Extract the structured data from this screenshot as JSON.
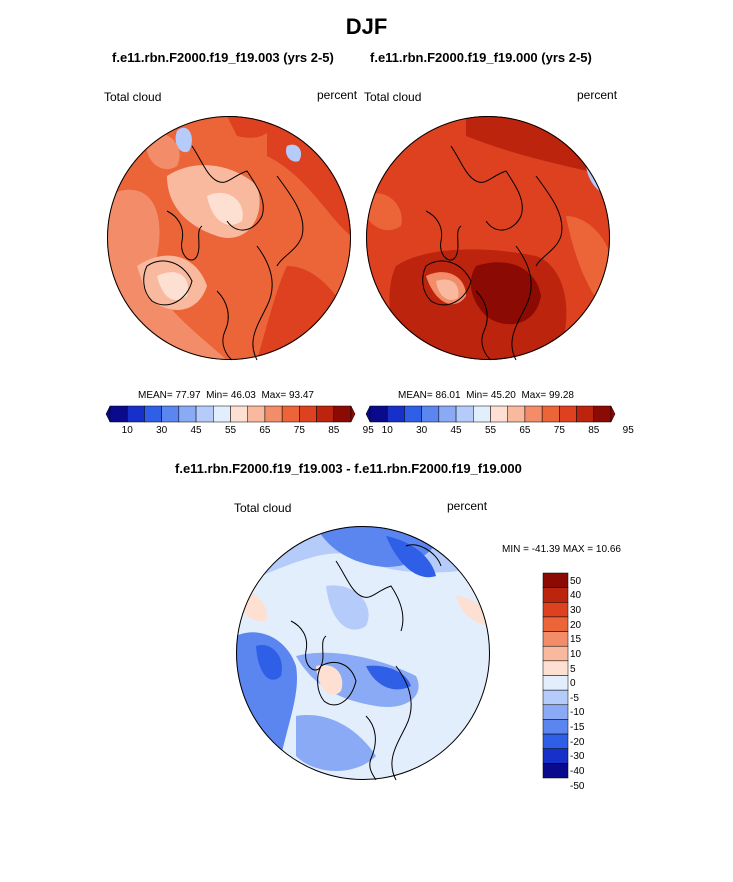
{
  "title": "DJF",
  "panels": [
    {
      "title": "f.e11.rbn.F2000.f19_f19.003 (yrs 2-5)",
      "variable": "Total cloud",
      "units": "percent",
      "stats": {
        "mean_label": "MEAN=",
        "mean": "77.97",
        "min_label": "Min=",
        "min": "46.03",
        "max_label": "Max=",
        "max": "93.47"
      },
      "colorbar_ticks": [
        "10",
        "30",
        "45",
        "55",
        "65",
        "75",
        "85",
        "95"
      ]
    },
    {
      "title": "f.e11.rbn.F2000.f19_f19.000 (yrs 2-5)",
      "variable": "Total cloud",
      "units": "percent",
      "stats": {
        "mean_label": "MEAN=",
        "mean": "86.01",
        "min_label": "Min=",
        "min": "45.20",
        "max_label": "Max=",
        "max": "99.28"
      },
      "colorbar_ticks": [
        "10",
        "30",
        "45",
        "55",
        "65",
        "75",
        "85",
        "95"
      ]
    },
    {
      "title": "f.e11.rbn.F2000.f19_f19.003 - f.e11.rbn.F2000.f19_f19.000",
      "variable": "Total cloud",
      "units": "percent",
      "minmax_text": "MIN = -41.39 MAX =  10.66",
      "colorbar_ticks": [
        "50",
        "40",
        "30",
        "20",
        "15",
        "10",
        "5",
        "0",
        "-5",
        "-10",
        "-15",
        "-20",
        "-30",
        "-40",
        "-50"
      ]
    }
  ],
  "colors": {
    "abs_scale": [
      "#0a0a8c",
      "#1730c9",
      "#2f5fe6",
      "#5b86ef",
      "#8aaaf5",
      "#b5cbfa",
      "#e3eefc",
      "#fde0d2",
      "#f9b99e",
      "#f38c68",
      "#ec6539",
      "#dd4120",
      "#bd240d",
      "#8c0a04"
    ],
    "diff_scale": [
      "#8c0a04",
      "#bd240d",
      "#dd4120",
      "#ec6539",
      "#f38c68",
      "#f9b99e",
      "#fde0d2",
      "#e3eefc",
      "#b5cbfa",
      "#8aaaf5",
      "#5b86ef",
      "#2f5fe6",
      "#1730c9",
      "#0a0a8c"
    ]
  },
  "chart_data": [
    {
      "type": "heatmap",
      "projection": "north polar stereographic",
      "title": "f.e11.rbn.F2000.f19_f19.003 (yrs 2-5)",
      "variable": "Total cloud",
      "units": "percent",
      "mean": 77.97,
      "min": 46.03,
      "max": 93.47,
      "levels": [
        10,
        20,
        30,
        40,
        45,
        50,
        55,
        60,
        65,
        70,
        75,
        80,
        85,
        90,
        95
      ]
    },
    {
      "type": "heatmap",
      "projection": "north polar stereographic",
      "title": "f.e11.rbn.F2000.f19_f19.000 (yrs 2-5)",
      "variable": "Total cloud",
      "units": "percent",
      "mean": 86.01,
      "min": 45.2,
      "max": 99.28,
      "levels": [
        10,
        20,
        30,
        40,
        45,
        50,
        55,
        60,
        65,
        70,
        75,
        80,
        85,
        90,
        95
      ]
    },
    {
      "type": "heatmap",
      "projection": "north polar stereographic",
      "title": "f.e11.rbn.F2000.f19_f19.003 - f.e11.rbn.F2000.f19_f19.000",
      "variable": "Total cloud",
      "units": "percent",
      "min": -41.39,
      "max": 10.66,
      "levels": [
        -50,
        -40,
        -30,
        -20,
        -15,
        -10,
        -5,
        0,
        5,
        10,
        15,
        20,
        30,
        40,
        50
      ]
    }
  ]
}
